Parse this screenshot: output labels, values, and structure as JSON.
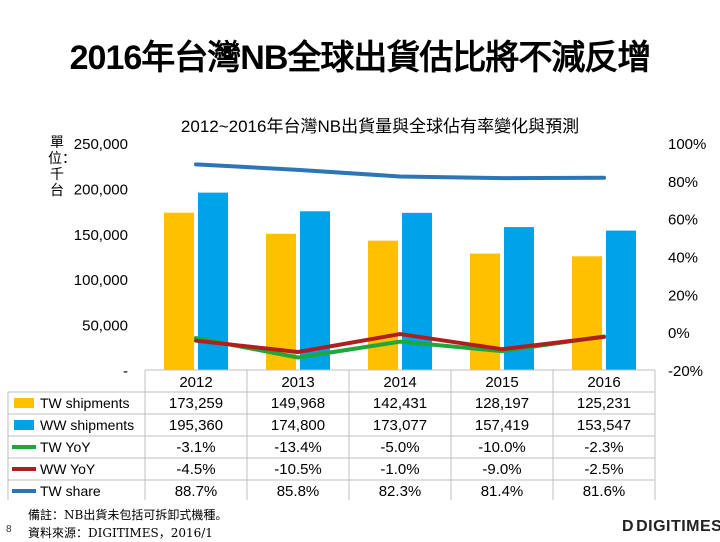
{
  "page": {
    "title": "2016年台灣NB全球出貨估比將不減反增",
    "page_number": "8",
    "footnote_lines": [
      "備註：NB出貨未包括可拆卸式機種。",
      "資料來源：DIGITIMES，2016/1"
    ],
    "logo_text": "DIGITIMES",
    "logo_mark": "D"
  },
  "chart_data": {
    "type": "bar",
    "title": "2012~2016年台灣NB出貨量與全球佔有率變化與預測",
    "unit_label": "單位：千台",
    "categories": [
      "2012",
      "2013",
      "2014",
      "2015",
      "2016"
    ],
    "left_axis": {
      "ticks": [
        "-",
        "50,000",
        "100,000",
        "150,000",
        "200,000",
        "250,000"
      ],
      "tick_values": [
        0,
        50000,
        100000,
        150000,
        200000,
        250000
      ],
      "ylim": [
        0,
        250000
      ]
    },
    "right_axis": {
      "ticks": [
        "-20%",
        "0%",
        "20%",
        "40%",
        "60%",
        "80%",
        "100%"
      ],
      "tick_values": [
        -20,
        0,
        20,
        40,
        60,
        80,
        100
      ],
      "ylim": [
        -20,
        100
      ]
    },
    "bar_series": [
      {
        "name": "TW shipments",
        "color": "#FFC000",
        "values": [
          173259,
          149968,
          142431,
          128197,
          125231
        ],
        "labels": [
          "173,259",
          "149,968",
          "142,431",
          "128,197",
          "125,231"
        ]
      },
      {
        "name": "WW shipments",
        "color": "#00A2E8",
        "values": [
          195360,
          174800,
          173077,
          157419,
          153547
        ],
        "labels": [
          "195,360",
          "174,800",
          "173,077",
          "157,419",
          "153,547"
        ]
      }
    ],
    "line_series": [
      {
        "name": "TW YoY",
        "color": "#1EA83C",
        "values": [
          -3.1,
          -13.4,
          -5.0,
          -10.0,
          -2.3
        ],
        "labels": [
          "-3.1%",
          "-13.4%",
          "-5.0%",
          "-10.0%",
          "-2.3%"
        ]
      },
      {
        "name": "WW YoY",
        "color": "#B01E1E",
        "values": [
          -4.5,
          -10.5,
          -1.0,
          -9.0,
          -2.5
        ],
        "labels": [
          "-4.5%",
          "-10.5%",
          "-1.0%",
          "-9.0%",
          "-2.5%"
        ]
      },
      {
        "name": "TW share",
        "color": "#2E75B6",
        "values": [
          88.7,
          85.8,
          82.3,
          81.4,
          81.6
        ],
        "labels": [
          "88.7%",
          "85.8%",
          "82.3%",
          "81.4%",
          "81.6%"
        ]
      }
    ]
  }
}
